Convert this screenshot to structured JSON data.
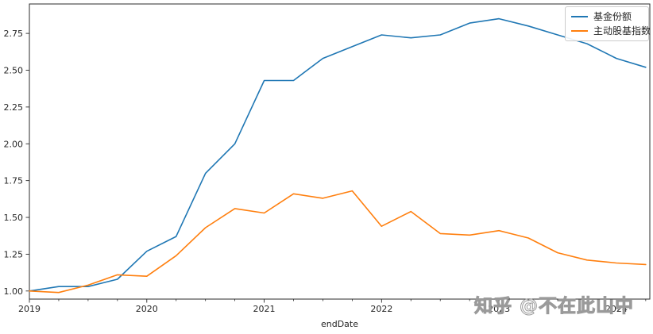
{
  "watermark": {
    "text": "知乎 @不在此山中"
  },
  "colors": {
    "series1": "#1f77b4",
    "series2": "#ff7f0e",
    "axis": "#2b2b2b",
    "text": "#262626",
    "legend_border": "#cccccc",
    "watermark": "#9a9a9a"
  },
  "legend": {
    "items": [
      {
        "label": "基金份额",
        "color_key": "series1"
      },
      {
        "label": "主动股基指数",
        "color_key": "series2"
      }
    ],
    "position": "upper right"
  },
  "chart_data": {
    "type": "line",
    "title": "",
    "xlabel": "endDate",
    "ylabel": "",
    "grid": false,
    "legend_position": "upper right",
    "xlim": [
      2019.0,
      2024.285
    ],
    "ylim": [
      0.945,
      2.95
    ],
    "x_ticks_major": [
      2019,
      2020,
      2021,
      2022,
      2023,
      2024
    ],
    "x_tick_labels": [
      "2019",
      "2020",
      "2021",
      "2022",
      "2023",
      "2024"
    ],
    "x_minor_step": 0.25,
    "y_ticks": [
      1.0,
      1.25,
      1.5,
      1.75,
      2.0,
      2.25,
      2.5,
      2.75
    ],
    "y_tick_labels": [
      "1.00",
      "1.25",
      "1.50",
      "1.75",
      "2.00",
      "2.25",
      "2.50",
      "2.75"
    ],
    "x": [
      2019.0,
      2019.25,
      2019.5,
      2019.75,
      2020.0,
      2020.25,
      2020.5,
      2020.75,
      2021.0,
      2021.25,
      2021.5,
      2021.75,
      2022.0,
      2022.25,
      2022.5,
      2022.75,
      2023.0,
      2023.25,
      2023.5,
      2023.75,
      2024.0,
      2024.25
    ],
    "series": [
      {
        "name": "基金份额",
        "color_key": "series1",
        "values": [
          1.0,
          1.03,
          1.03,
          1.08,
          1.27,
          1.37,
          1.8,
          2.0,
          2.43,
          2.43,
          2.58,
          2.66,
          2.74,
          2.72,
          2.74,
          2.82,
          2.85,
          2.8,
          2.74,
          2.68,
          2.58,
          2.52
        ]
      },
      {
        "name": "主动股基指数",
        "color_key": "series2",
        "values": [
          1.0,
          0.99,
          1.04,
          1.11,
          1.1,
          1.24,
          1.43,
          1.56,
          1.53,
          1.66,
          1.63,
          1.68,
          1.44,
          1.54,
          1.39,
          1.38,
          1.41,
          1.36,
          1.26,
          1.21,
          1.19,
          1.18
        ]
      }
    ]
  }
}
